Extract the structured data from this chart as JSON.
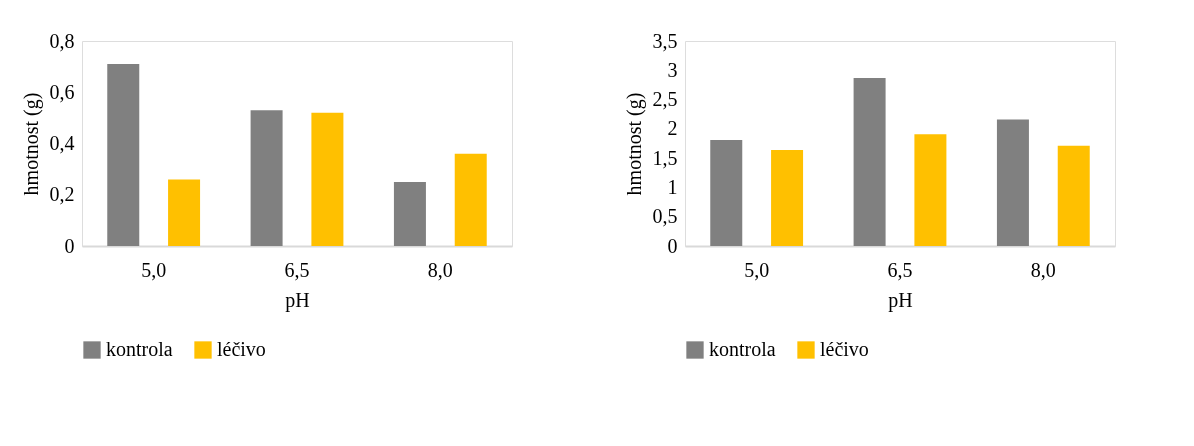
{
  "chart_data": [
    {
      "type": "bar",
      "xlabel": "pH",
      "ylabel": "hmotnost (g)",
      "categories": [
        "5,0",
        "6,5",
        "8,0"
      ],
      "series": [
        {
          "name": "kontrola",
          "color": "#808080",
          "values": [
            0.71,
            0.53,
            0.25
          ]
        },
        {
          "name": "léčivo",
          "color": "#ffc000",
          "values": [
            0.26,
            0.52,
            0.36
          ]
        }
      ],
      "ylim": [
        0,
        0.8
      ],
      "yticks": [
        0,
        {
          "value": 0.2,
          "label": "0,2"
        },
        {
          "value": 0.4,
          "label": "0,4"
        },
        {
          "value": 0.6,
          "label": "0,6"
        },
        {
          "value": 0.8,
          "label": "0,8"
        }
      ],
      "grid": false,
      "legend": "bottom"
    },
    {
      "type": "bar",
      "xlabel": "pH",
      "ylabel": "hmotnost (g)",
      "categories": [
        "5,0",
        "6,5",
        "8,0"
      ],
      "series": [
        {
          "name": "kontrola",
          "color": "#808080",
          "values": [
            1.81,
            2.87,
            2.16
          ]
        },
        {
          "name": "léčivo",
          "color": "#ffc000",
          "values": [
            1.64,
            1.91,
            1.71
          ]
        }
      ],
      "ylim": [
        0,
        3.5
      ],
      "yticks": [
        0,
        {
          "value": 0.5,
          "label": "0,5"
        },
        1,
        {
          "value": 1.5,
          "label": "1,5"
        },
        2,
        {
          "value": 2.5,
          "label": "2,5"
        },
        3,
        {
          "value": 3.5,
          "label": "3,5"
        }
      ],
      "grid": false,
      "legend": "bottom"
    }
  ]
}
